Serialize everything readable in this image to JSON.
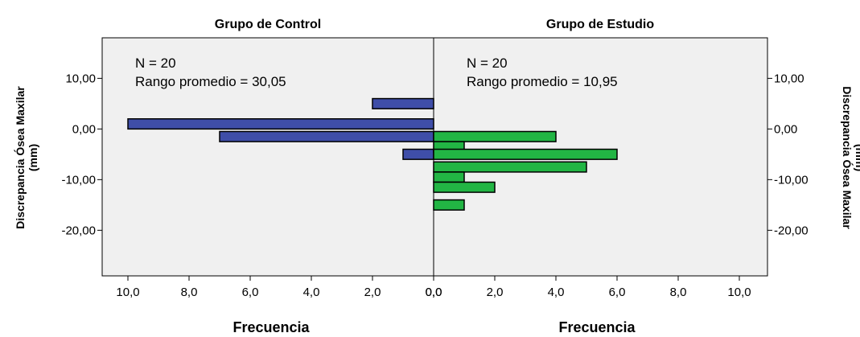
{
  "chart_data": {
    "type": "bar",
    "orientation": "horizontal",
    "bin_width": 2.5,
    "ylabel": "Discrepancia Ósea Maxilar (mm)",
    "ylabel_lines": [
      "Discrepancia Ósea Maxilar",
      "(mm)"
    ],
    "ylim": [
      -29,
      18
    ],
    "yticks": [
      10,
      0,
      -10,
      -20
    ],
    "yticks_labels": [
      "10,00",
      "0,00",
      "-10,00",
      "-20,00"
    ],
    "xlim": [
      0,
      10
    ],
    "xticks": [
      0,
      2,
      4,
      6,
      8,
      10
    ],
    "grid": false,
    "panels": [
      {
        "name": "Grupo de Control",
        "title": "Grupo de Control",
        "xlabel": "Frecuencia",
        "xtick_labels": [
          "0,0",
          "2,0",
          "4,0",
          "6,0",
          "8,0",
          "10,0"
        ],
        "direction": "left",
        "color": "#3f4ea8",
        "annotation_n": "N = 20",
        "annotation_rank": "Rango promedio = 30,05",
        "bins": [
          {
            "y": 5.0,
            "count": 2
          },
          {
            "y": 1.0,
            "count": 10
          },
          {
            "y": -1.5,
            "count": 7
          },
          {
            "y": -5.0,
            "count": 1
          }
        ]
      },
      {
        "name": "Grupo de Estudio",
        "title": "Grupo de Estudio",
        "xlabel": "Frecuencia",
        "xtick_labels": [
          "0,0",
          "2,0",
          "4,0",
          "6,0",
          "8,0",
          "10,0"
        ],
        "direction": "right",
        "color": "#22b544",
        "annotation_n": "N = 20",
        "annotation_rank": "Rango promedio = 10,95",
        "bins": [
          {
            "y": -1.5,
            "count": 4
          },
          {
            "y": -3.5,
            "count": 1
          },
          {
            "y": -5.0,
            "count": 6
          },
          {
            "y": -7.5,
            "count": 5
          },
          {
            "y": -9.5,
            "count": 1
          },
          {
            "y": -11.5,
            "count": 2
          },
          {
            "y": -15.0,
            "count": 1
          }
        ]
      }
    ]
  }
}
